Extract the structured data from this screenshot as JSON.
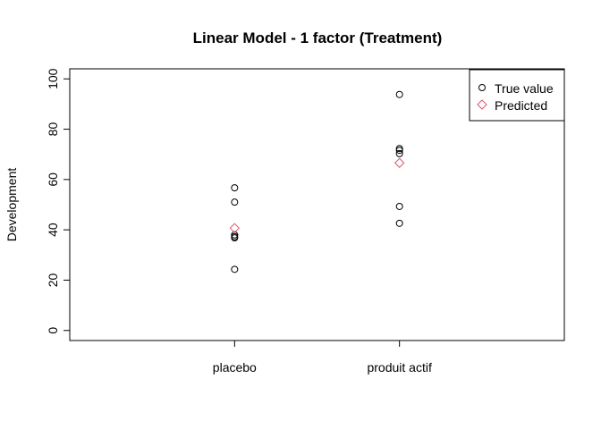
{
  "chart_data": {
    "type": "scatter",
    "title": "Linear Model - 1 factor (Treatment)",
    "xlabel": "",
    "ylabel": "Development",
    "categories": [
      "placebo",
      "produit actif"
    ],
    "xlim": [
      0,
      3
    ],
    "ylim": [
      0,
      100
    ],
    "yticks": [
      0,
      20,
      40,
      60,
      80,
      100
    ],
    "grid": false,
    "legend_position": "top-right",
    "series": [
      {
        "name": "True value",
        "marker": "circle",
        "color": "#000000",
        "points": [
          {
            "category": "placebo",
            "y": 56.7
          },
          {
            "category": "placebo",
            "y": 51.0
          },
          {
            "category": "placebo",
            "y": 38.0
          },
          {
            "category": "placebo",
            "y": 37.3
          },
          {
            "category": "placebo",
            "y": 36.8
          },
          {
            "category": "placebo",
            "y": 24.3
          },
          {
            "category": "produit actif",
            "y": 93.8
          },
          {
            "category": "produit actif",
            "y": 72.3
          },
          {
            "category": "produit actif",
            "y": 71.6
          },
          {
            "category": "produit actif",
            "y": 70.3
          },
          {
            "category": "produit actif",
            "y": 49.3
          },
          {
            "category": "produit actif",
            "y": 42.6
          }
        ]
      },
      {
        "name": "Predicted",
        "marker": "diamond",
        "color": "#df536b",
        "points": [
          {
            "category": "placebo",
            "y": 40.7
          },
          {
            "category": "produit actif",
            "y": 66.6
          }
        ]
      }
    ]
  }
}
